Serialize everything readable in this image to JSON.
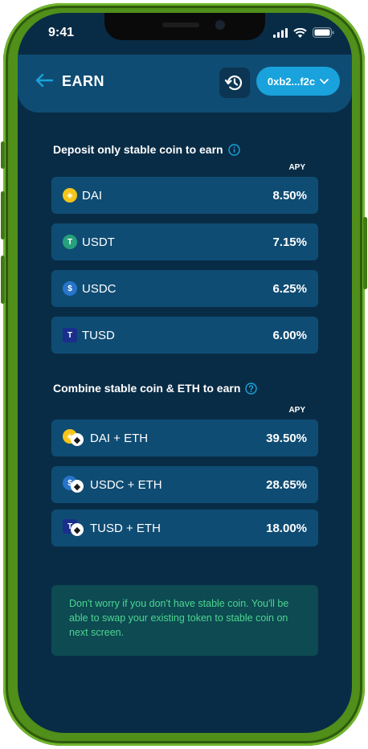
{
  "status": {
    "time": "9:41"
  },
  "header": {
    "title": "EARN",
    "wallet": "0xb2...f2c"
  },
  "section1": {
    "title": "Deposit only stable coin to earn",
    "apy_label": "APY"
  },
  "stable_rows": [
    {
      "name": "DAI",
      "apy": "8.50%",
      "icon": "dai-icon",
      "color": "#f5c518"
    },
    {
      "name": "USDT",
      "apy": "7.15%",
      "icon": "usdt-icon",
      "color": "#26a17b"
    },
    {
      "name": "USDC",
      "apy": "6.25%",
      "icon": "usdc-icon",
      "color": "#2775ca"
    },
    {
      "name": "TUSD",
      "apy": "6.00%",
      "icon": "tusd-icon",
      "color": "#1a2e8c"
    }
  ],
  "section2": {
    "title": "Combine stable coin & ETH to earn",
    "apy_label": "APY"
  },
  "pair_rows": [
    {
      "name": "DAI + ETH",
      "apy": "39.50%"
    },
    {
      "name": "USDC + ETH",
      "apy": "28.65%"
    },
    {
      "name": "TUSD + ETH",
      "apy": "18.00%"
    }
  ],
  "note": "Don't worry if you don't have stable coin. You'll be able to swap your existing token to stable coin on next screen.",
  "colors": {
    "accent": "#19a2dc",
    "background": "#092c46",
    "card": "#0f4c73",
    "note_text": "#4cd690",
    "frame": "#4f8f1a"
  }
}
